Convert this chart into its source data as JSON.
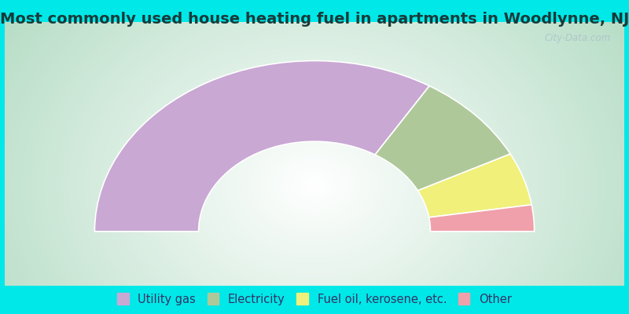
{
  "title": "Most commonly used house heating fuel in apartments in Woodlynne, NJ",
  "title_color": "#1a3a3a",
  "title_fontsize": 14,
  "border_color": "#00e8e8",
  "border_width": 6,
  "background_center": "#ffffff",
  "background_edge": "#b8ddc8",
  "segments": [
    {
      "label": "Utility gas",
      "value": 67.5,
      "color": "#c9a8d4"
    },
    {
      "label": "Electricity",
      "value": 17.5,
      "color": "#afc89a"
    },
    {
      "label": "Fuel oil, kerosene, etc.",
      "value": 10.0,
      "color": "#f0f07a"
    },
    {
      "label": "Other",
      "value": 5.0,
      "color": "#f0a0aa"
    }
  ],
  "outer_r": 1.1,
  "inner_r": 0.58,
  "legend_text_color": "#333366",
  "legend_fontsize": 10.5,
  "watermark": "City-Data.com"
}
